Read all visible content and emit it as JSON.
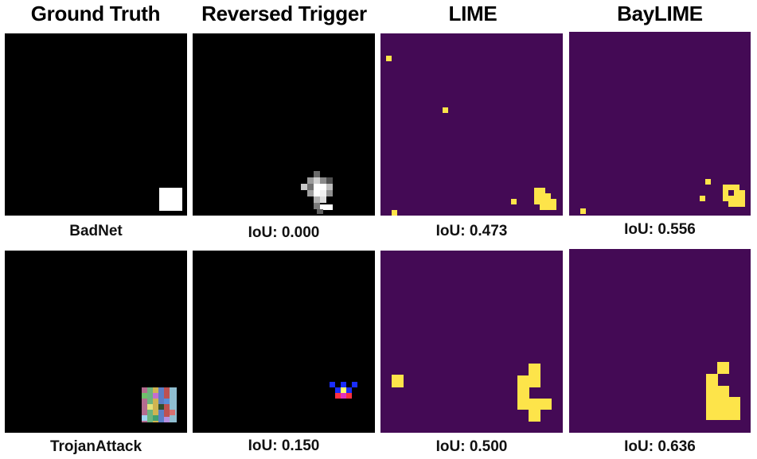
{
  "columns": [
    {
      "label": "Ground Truth"
    },
    {
      "label": "Reversed Trigger"
    },
    {
      "label": "LIME"
    },
    {
      "label": "BayLIME"
    }
  ],
  "rows": [
    {
      "ground_truth_caption": "BadNet",
      "iou": [
        "IoU: 0.000",
        "IoU: 0.473",
        "IoU: 0.556"
      ]
    },
    {
      "ground_truth_caption": "TrojanAttack",
      "iou": [
        "IoU: 0.150",
        "IoU: 0.500",
        "IoU: 0.636"
      ]
    }
  ],
  "colors": {
    "background_black": "#000000",
    "mask_purple": "#440a55",
    "mask_yellow": "#fde44a"
  }
}
